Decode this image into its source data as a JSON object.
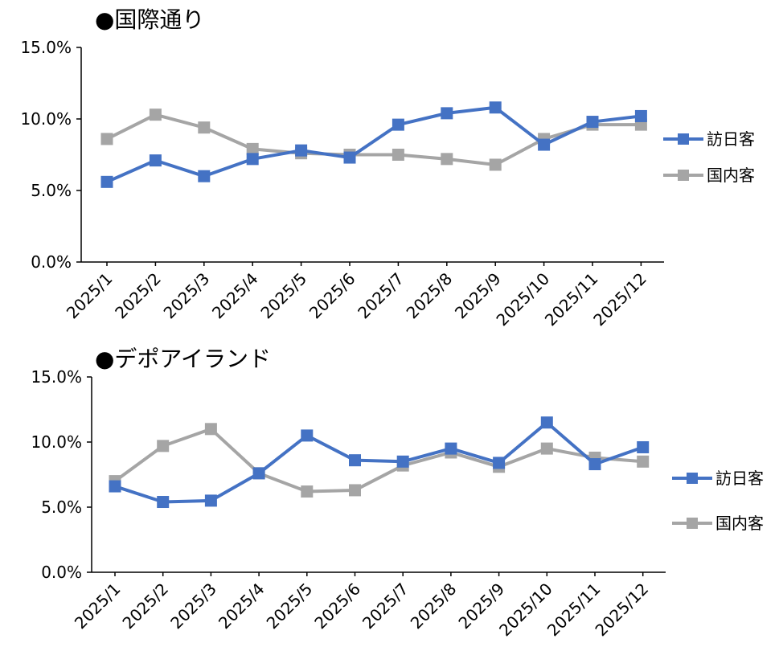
{
  "chart_data": [
    {
      "type": "line",
      "title": "●国際通り",
      "categories": [
        "2025/1",
        "2025/2",
        "2025/3",
        "2025/4",
        "2025/5",
        "2025/6",
        "2025/7",
        "2025/8",
        "2025/9",
        "2025/10",
        "2025/11",
        "2025/12"
      ],
      "ylim": [
        0,
        15
      ],
      "yticks": [
        "0.0%",
        "5.0%",
        "10.0%",
        "15.0%"
      ],
      "legend_position": "right",
      "series": [
        {
          "name": "訪日客",
          "color": "#4472C4",
          "values": [
            5.6,
            7.1,
            6.0,
            7.2,
            7.8,
            7.3,
            9.6,
            10.4,
            10.8,
            8.2,
            9.8,
            10.2
          ]
        },
        {
          "name": "国内客",
          "color": "#A5A5A5",
          "values": [
            8.6,
            10.3,
            9.4,
            7.9,
            7.6,
            7.5,
            7.5,
            7.2,
            6.8,
            8.6,
            9.6,
            9.6
          ]
        }
      ]
    },
    {
      "type": "line",
      "title": "●デポアイランド",
      "categories": [
        "2025/1",
        "2025/2",
        "2025/3",
        "2025/4",
        "2025/5",
        "2025/6",
        "2025/7",
        "2025/8",
        "2025/9",
        "2025/10",
        "2025/11",
        "2025/12"
      ],
      "ylim": [
        0,
        15
      ],
      "yticks": [
        "0.0%",
        "5.0%",
        "10.0%",
        "15.0%"
      ],
      "legend_position": "right",
      "series": [
        {
          "name": "訪日客",
          "color": "#4472C4",
          "values": [
            6.6,
            5.4,
            5.5,
            7.6,
            10.5,
            8.6,
            8.5,
            9.5,
            8.4,
            11.5,
            8.3,
            9.6
          ]
        },
        {
          "name": "国内客",
          "color": "#A5A5A5",
          "values": [
            7.0,
            9.7,
            11.0,
            7.6,
            6.2,
            6.3,
            8.2,
            9.2,
            8.1,
            9.5,
            8.8,
            8.5
          ]
        }
      ]
    }
  ]
}
